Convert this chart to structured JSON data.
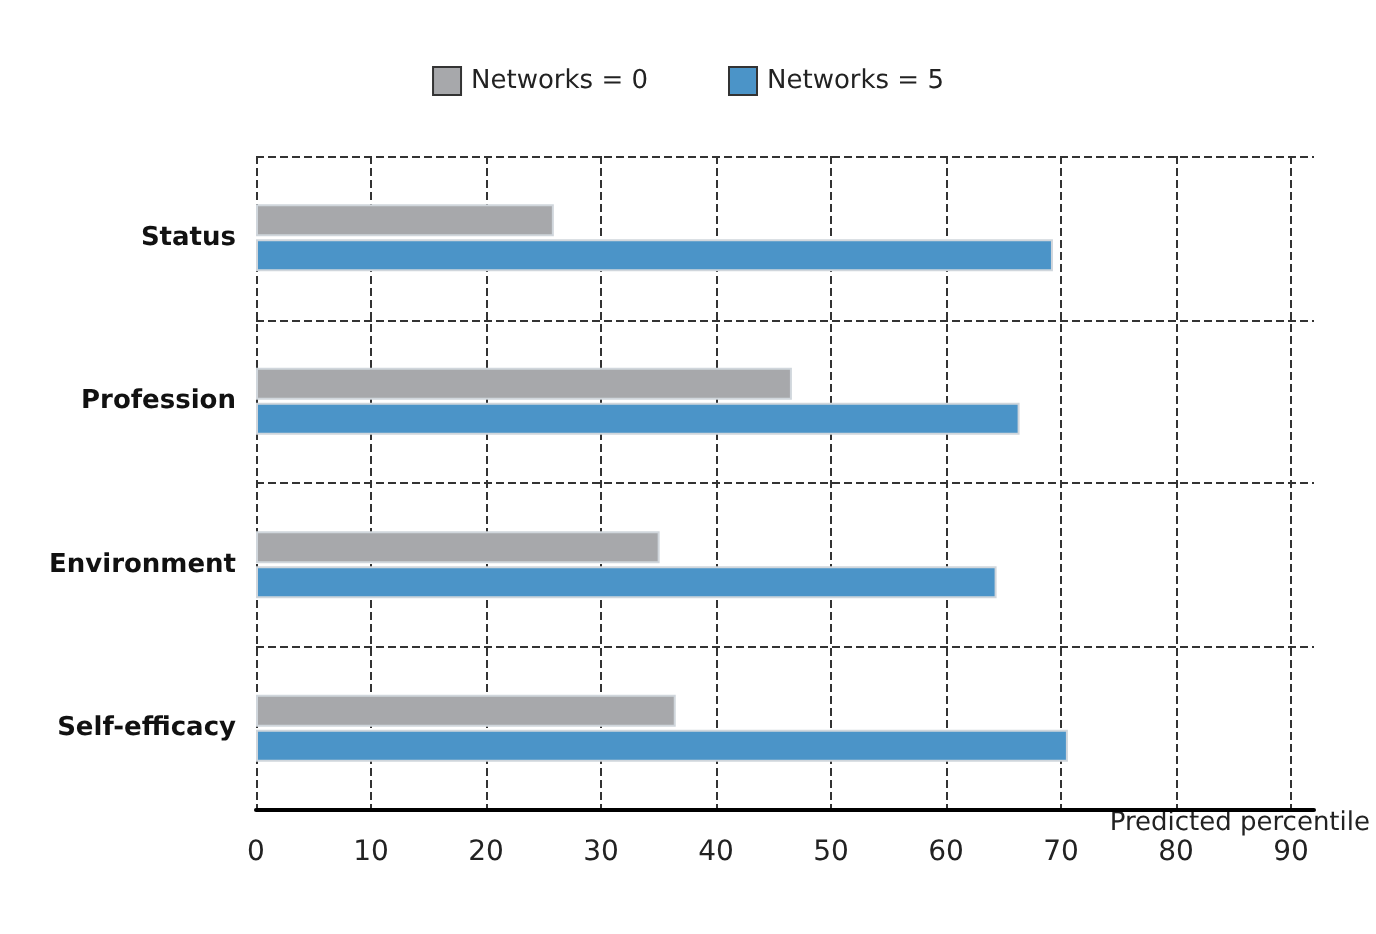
{
  "chart_data": {
    "type": "bar",
    "orientation": "horizontal",
    "xlabel": "Predicted percentile",
    "categories": [
      "Status",
      "Profession",
      "Environment",
      "Self-efficacy"
    ],
    "series": [
      {
        "name": "Networks = 0",
        "color": "#a7a8ab",
        "values": [
          25.9,
          46.6,
          35.1,
          36.5
        ]
      },
      {
        "name": "Networks = 5",
        "color": "#4b94c8",
        "values": [
          69.3,
          66.4,
          64.4,
          70.6
        ]
      }
    ],
    "xlim": [
      0,
      92
    ],
    "xticks": [
      0,
      10,
      20,
      30,
      40,
      50,
      60,
      70,
      80,
      90
    ],
    "grid": true,
    "legend": "top"
  }
}
